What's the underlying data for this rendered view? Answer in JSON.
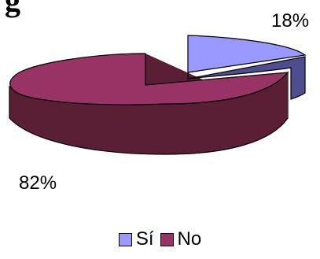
{
  "chart_data": {
    "type": "pie",
    "title": "",
    "categories": [
      "Sí",
      "No"
    ],
    "values": [
      18,
      82
    ],
    "data_labels": [
      "18%",
      "82%"
    ],
    "colors": [
      "#9999ff",
      "#993366"
    ],
    "legend_position": "bottom",
    "style": "3d-exploded"
  }
}
